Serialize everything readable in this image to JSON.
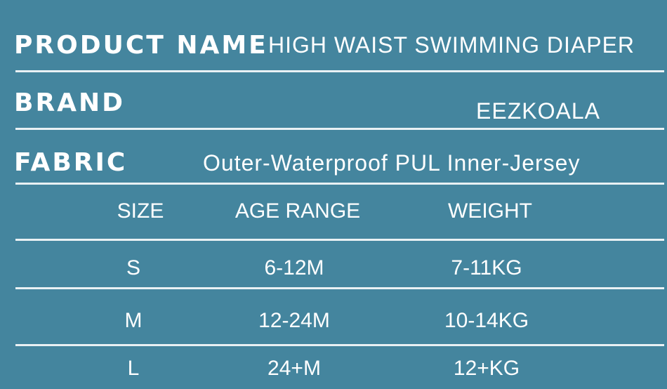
{
  "info": [
    {
      "label": "PRODUCT NAME",
      "value": "HIGH WAIST SWIMMING DIAPER"
    },
    {
      "label": "BRAND",
      "value": "EEZKOALA"
    },
    {
      "label": "FABRIC",
      "value": "Outer-Waterproof PUL Inner-Jersey"
    }
  ],
  "table": {
    "header": [
      "SIZE",
      "AGE RANGE",
      "WEIGHT"
    ],
    "rows": [
      [
        "S",
        "6-12M",
        "7-11KG"
      ],
      [
        "M",
        "12-24M",
        "10-14KG"
      ],
      [
        "L",
        "24+M",
        "12+KG"
      ]
    ]
  }
}
